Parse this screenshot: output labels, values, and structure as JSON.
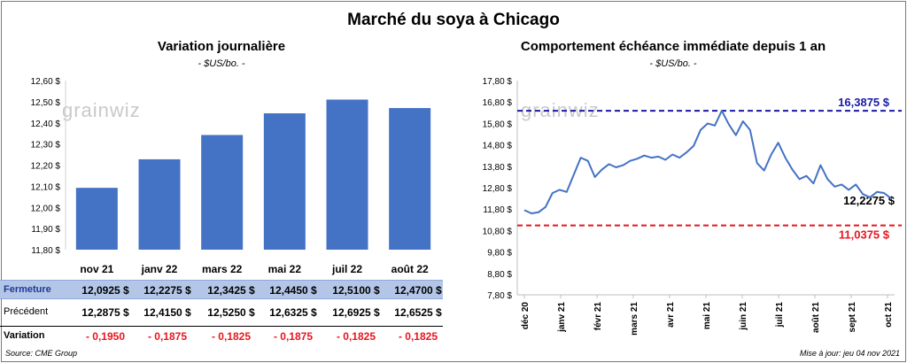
{
  "title": "Marché du soya à Chicago",
  "left": {
    "title": "Variation journalière",
    "unit": "- $US/bo. -",
    "watermark": "grainwiz"
  },
  "right": {
    "title": "Comportement échéance immédiate depuis 1 an",
    "unit": "- $US/bo. -",
    "watermark": "grainwiz",
    "ref_high_label": "16,3875 $",
    "ref_low_label": "11,0375 $",
    "last_label": "12,2275 $"
  },
  "table": {
    "rows": [
      {
        "label": "Fermeture",
        "values": [
          "12,0925 $",
          "12,2275 $",
          "12,3425 $",
          "12,4450 $",
          "12,5100 $",
          "12,4700 $"
        ]
      },
      {
        "label": "Précédent",
        "values": [
          "12,2875 $",
          "12,4150 $",
          "12,5250 $",
          "12,6325 $",
          "12,6925 $",
          "12,6525 $"
        ]
      },
      {
        "label": "Variation",
        "values": [
          "- 0,1950",
          "- 0,1875",
          "- 0,1825",
          "- 0,1875",
          "- 0,1825",
          "- 0,1825"
        ]
      }
    ]
  },
  "footer": {
    "source": "Source: CME Group",
    "updated": "Mise à jour: jeu 04 nov 2021"
  },
  "colors": {
    "bar": "#4472c4",
    "line": "#4472c4",
    "high_ref": "#1a1aa8",
    "low_ref": "#e8141e",
    "header_row_bg": "#b4c6e7",
    "negative": "#e8141e"
  },
  "chart_data": [
    {
      "type": "bar",
      "title": "Variation journalière",
      "categories": [
        "nov 21",
        "janv 22",
        "mars 22",
        "mai 22",
        "juil 22",
        "août 22"
      ],
      "values": [
        12.0925,
        12.2275,
        12.3425,
        12.445,
        12.51,
        12.47
      ],
      "ylim": [
        11.8,
        12.6
      ],
      "yticks": [
        "11,80 $",
        "11,90 $",
        "12,00 $",
        "12,10 $",
        "12,20 $",
        "12,30 $",
        "12,40 $",
        "12,50 $",
        "12,60 $"
      ],
      "grid": false
    },
    {
      "type": "line",
      "title": "Comportement échéance immédiate depuis 1 an",
      "x_ticks": [
        "déc 20",
        "janv 21",
        "févr 21",
        "mars 21",
        "avr 21",
        "mai 21",
        "juin 21",
        "juil 21",
        "août 21",
        "sept 21",
        "oct 21"
      ],
      "ylim": [
        7.8,
        17.8
      ],
      "yticks": [
        "7,80 $",
        "8,80 $",
        "9,80 $",
        "10,80 $",
        "11,80 $",
        "12,80 $",
        "13,80 $",
        "14,80 $",
        "15,80 $",
        "16,80 $",
        "17,80 $"
      ],
      "series": [
        {
          "values": [
            11.75,
            11.6,
            11.65,
            11.9,
            12.55,
            12.7,
            12.6,
            13.4,
            14.2,
            14.05,
            13.3,
            13.65,
            13.9,
            13.75,
            13.85,
            14.05,
            14.15,
            14.3,
            14.2,
            14.25,
            14.1,
            14.35,
            14.2,
            14.45,
            14.75,
            15.5,
            15.8,
            15.7,
            16.39,
            15.75,
            15.25,
            15.9,
            15.5,
            13.95,
            13.6,
            14.35,
            14.9,
            14.2,
            13.65,
            13.2,
            13.35,
            13.0,
            13.85,
            13.2,
            12.85,
            12.95,
            12.7,
            12.95,
            12.5,
            12.35,
            12.6,
            12.55,
            12.3
          ]
        }
      ],
      "reference_lines": [
        16.3875,
        11.0375
      ],
      "last_value": 12.2275,
      "grid": false
    }
  ]
}
